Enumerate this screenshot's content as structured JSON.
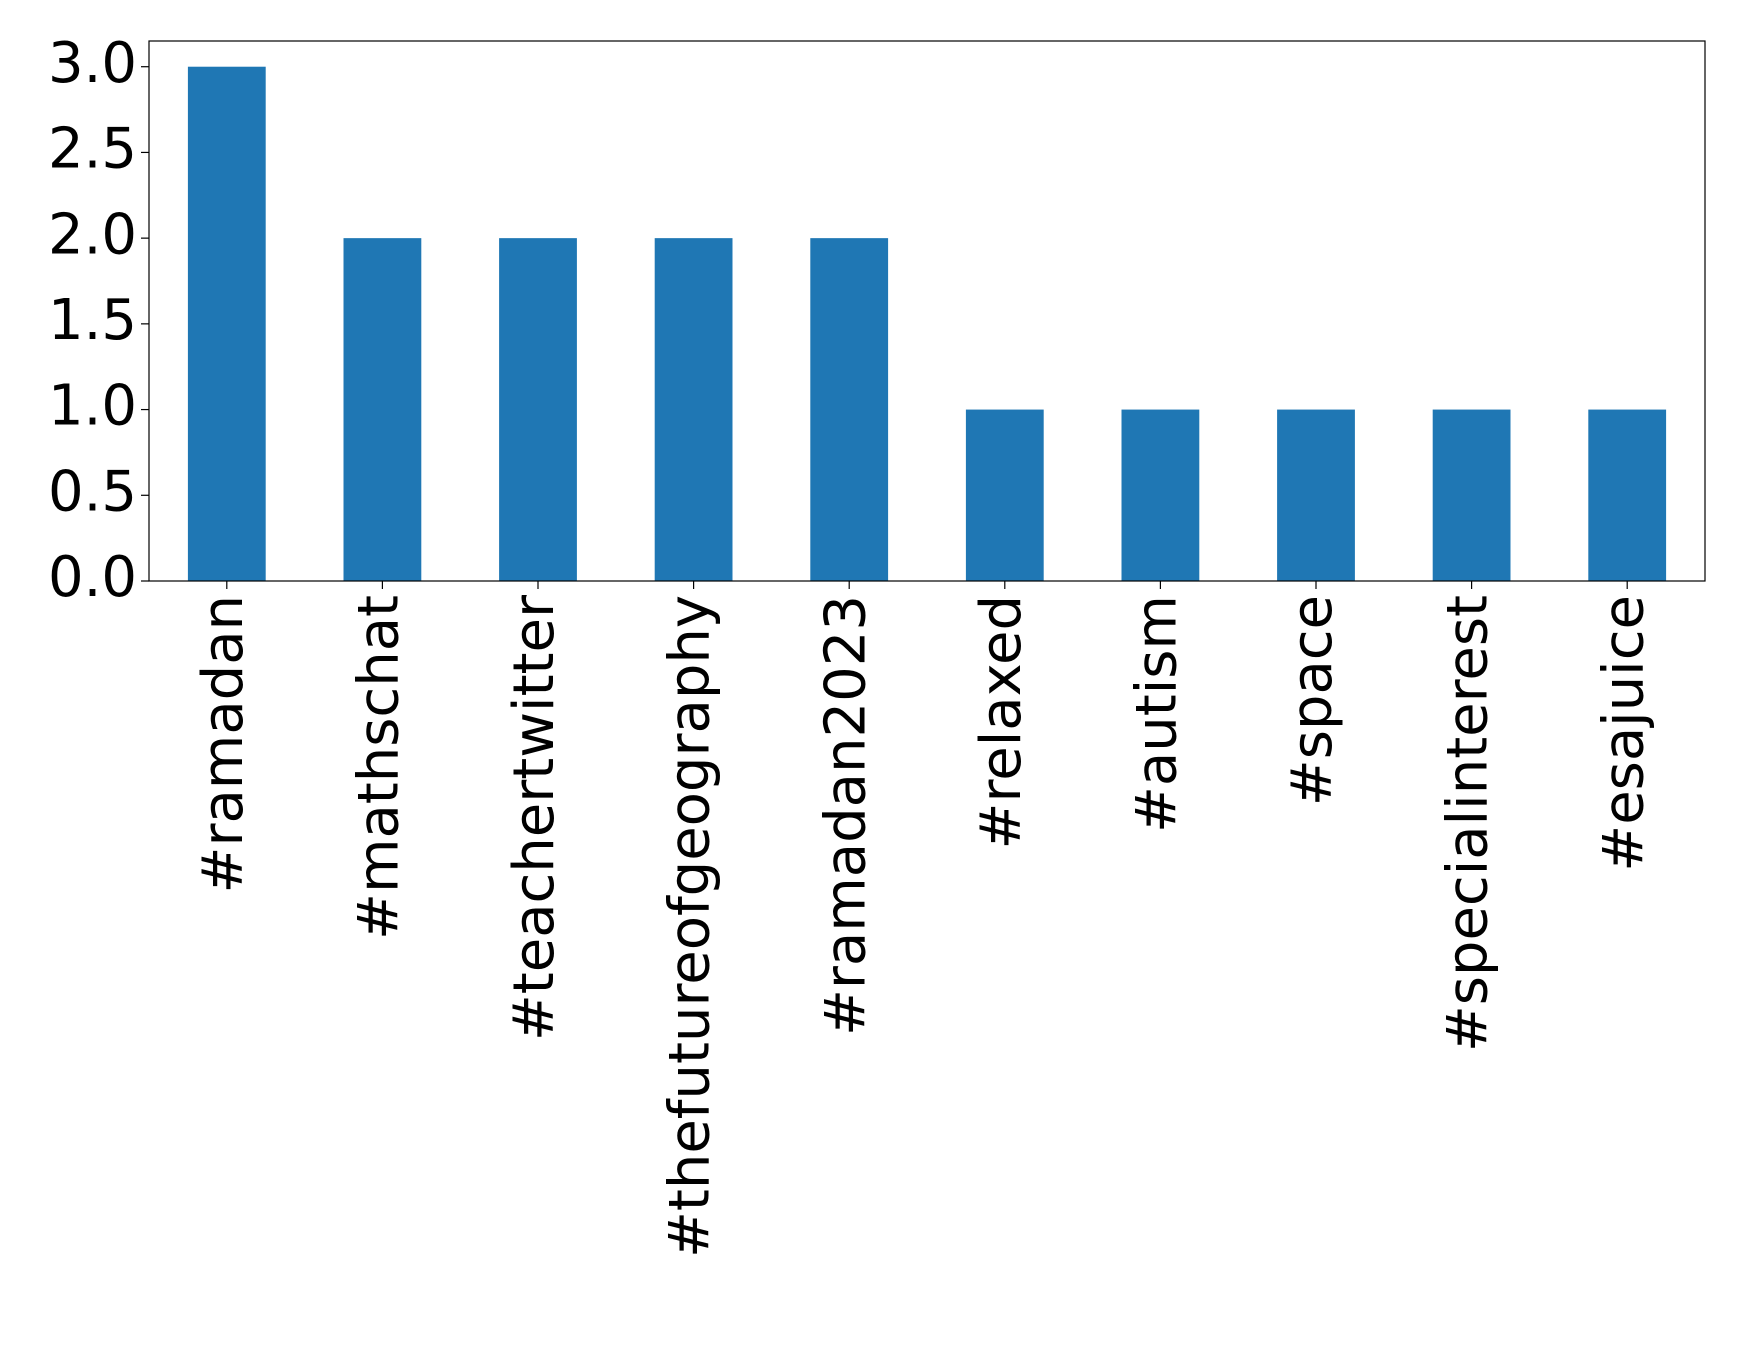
{
  "chart_data": {
    "type": "bar",
    "categories": [
      "#ramadan",
      "#mathschat",
      "#teachertwitter",
      "#thefutureofgeography",
      "#ramadan2023",
      "#relaxed",
      "#autism",
      "#space",
      "#specialinterest",
      "#esajuice"
    ],
    "values": [
      3,
      2,
      2,
      2,
      2,
      1,
      1,
      1,
      1,
      1
    ],
    "color": "#1f77b4",
    "ylim": [
      0,
      3.15
    ],
    "yticks": [
      {
        "value": 0,
        "label": "0.0"
      },
      0.5,
      {
        "value": 1,
        "label": "1.0"
      },
      1.5,
      {
        "value": 2,
        "label": "2.0"
      },
      2.5,
      {
        "value": 3,
        "label": "3.0"
      }
    ],
    "grid": false
  }
}
